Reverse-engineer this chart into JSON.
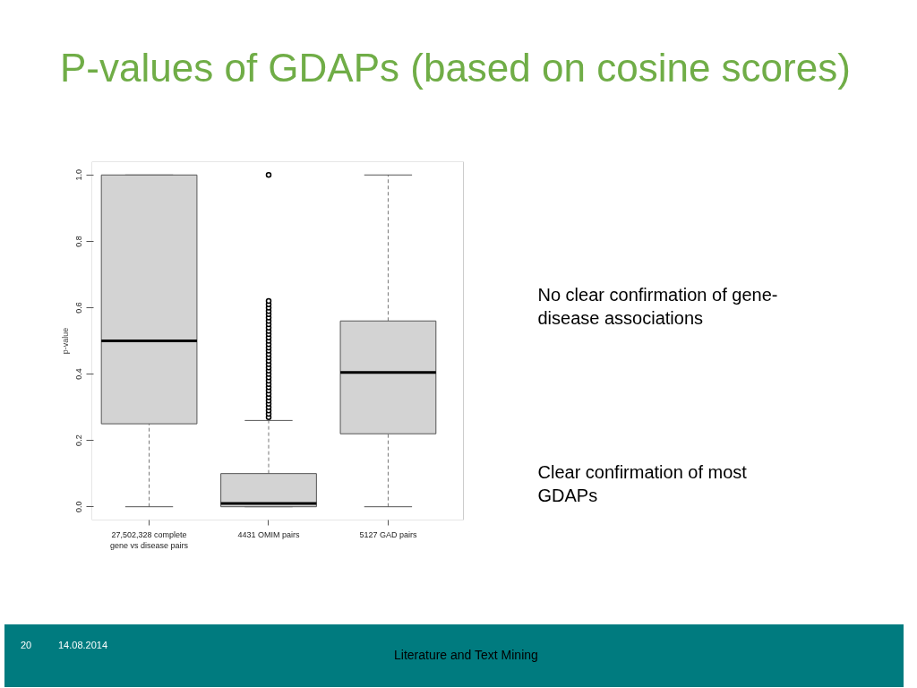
{
  "chart_data": {
    "type": "box",
    "title": "P-values of GDAPs (based on cosine scores)",
    "ylabel": "p-value",
    "categories": [
      "27,502,328 complete\ngene vs disease pairs",
      "4431 OMIM pairs",
      "5127 GAD pairs"
    ],
    "color": "#d3d3d3",
    "boxes": [
      {
        "low": 0,
        "q1": 0.25,
        "median": 0.5,
        "q3": 1.0,
        "high": 1.0
      },
      {
        "low": 0,
        "q1": 0,
        "median": 0.01,
        "q3": 0.1,
        "high": 0.26,
        "outliers": [
          0.27,
          0.28,
          0.29,
          0.3,
          0.31,
          0.32,
          0.33,
          0.34,
          0.35,
          0.36,
          0.37,
          0.38,
          0.39,
          0.4,
          0.41,
          0.42,
          0.43,
          0.44,
          0.45,
          0.46,
          0.47,
          0.48,
          0.49,
          0.5,
          0.51,
          0.52,
          0.53,
          0.54,
          0.55,
          0.56,
          0.57,
          0.58,
          0.59,
          0.6,
          0.61,
          0.62,
          1.0
        ]
      },
      {
        "low": 0,
        "q1": 0.22,
        "median": 0.405,
        "q3": 0.56,
        "high": 1.0
      }
    ],
    "ylim": [
      -0.04,
      1.04
    ],
    "yticks": [
      {
        "value": 0,
        "label": "0.0"
      },
      0.2,
      0.4,
      0.6,
      0.8,
      {
        "value": 1,
        "label": "1.0"
      }
    ],
    "grid": false,
    "annotations": [
      "No clear confirmation of gene-\ndisease associations",
      "Clear confirmation of most\nGDAPs",
      "20",
      "14.08.2014",
      "Literature and Text Mining"
    ]
  }
}
